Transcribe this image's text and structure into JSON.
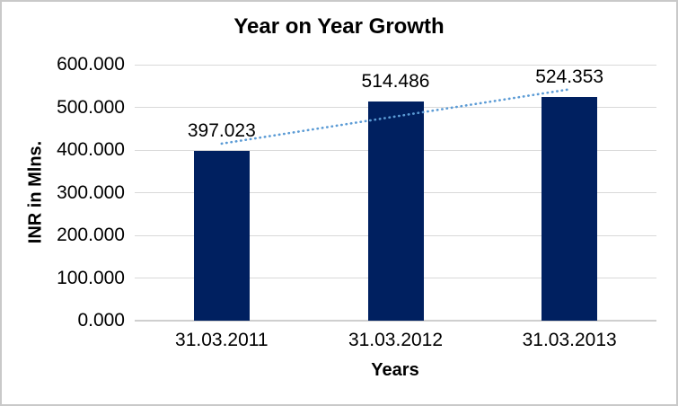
{
  "chart_data": {
    "type": "bar",
    "title": "Year on Year Growth",
    "xlabel": "Years",
    "ylabel": "INR in Mlns.",
    "categories": [
      "31.03.2011",
      "31.03.2012",
      "31.03.2013"
    ],
    "values": [
      397.023,
      514.486,
      524.353
    ],
    "data_labels": [
      "397.023",
      "514.486",
      "524.353"
    ],
    "ylim": [
      0,
      600
    ],
    "ytick_values": [
      600,
      500,
      400,
      300,
      200,
      100,
      0
    ],
    "ytick_labels": [
      "600.000",
      "500.000",
      "400.000",
      "300.000",
      "200.000",
      "100.000",
      "0.000"
    ],
    "grid": true,
    "legend": "none",
    "bar_color": "#002060",
    "trendline": {
      "type": "linear",
      "style": "dotted-round",
      "color": "#5B9BD5",
      "endpoints_value": [
        414.956,
        542.286
      ]
    },
    "colors": {
      "gridline": "#D9D9D9",
      "axis_line": "#CFCFCF",
      "text": "#000000",
      "frame_border": "#C9C9C9",
      "background": "#FFFFFF"
    }
  }
}
